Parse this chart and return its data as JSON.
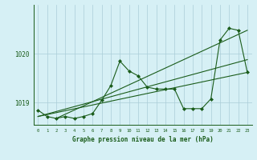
{
  "xlabel": "Graphe pression niveau de la mer (hPa)",
  "bg_color": "#d6f0f5",
  "grid_color": "#aacdd8",
  "line_color": "#1a5c1a",
  "marker_color": "#1a5c1a",
  "xlim": [
    -0.5,
    23.5
  ],
  "ylim": [
    1018.55,
    1021.0
  ],
  "yticks": [
    1019,
    1020
  ],
  "xticks": [
    0,
    1,
    2,
    3,
    4,
    5,
    6,
    7,
    8,
    9,
    10,
    11,
    12,
    13,
    14,
    15,
    16,
    17,
    18,
    19,
    20,
    21,
    22,
    23
  ],
  "series1": [
    1018.85,
    1018.72,
    1018.68,
    1018.72,
    1018.68,
    1018.72,
    1018.78,
    1019.05,
    1019.35,
    1019.85,
    1019.65,
    1019.55,
    1019.32,
    1019.28,
    1019.28,
    1019.28,
    1018.88,
    1018.88,
    1018.88,
    1019.08,
    1020.28,
    1020.52,
    1020.48,
    1019.62
  ],
  "series2_x": [
    0,
    23
  ],
  "series2_y": [
    1018.72,
    1019.62
  ],
  "series3_x": [
    0,
    23
  ],
  "series3_y": [
    1018.72,
    1019.88
  ],
  "series4_x": [
    2,
    23
  ],
  "series4_y": [
    1018.68,
    1020.48
  ]
}
